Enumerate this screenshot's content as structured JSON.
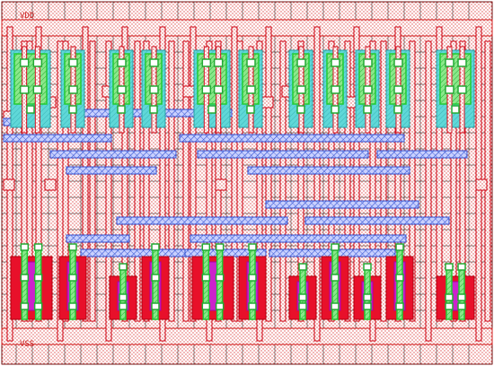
{
  "rails": {
    "top_label": "VDD",
    "bottom_label": "VSS"
  },
  "colors": {
    "background": "#ffffff",
    "poly": "#e8102a",
    "poly_outline": "#d01020",
    "nwell_hatch": "#d44",
    "diff_cyan": "#3cc6c6",
    "active_green": "#22cc33",
    "metal_blue": "#4466dd",
    "implant_magenta": "#cc22cc",
    "grid": "#000000",
    "contact": "#222222"
  }
}
